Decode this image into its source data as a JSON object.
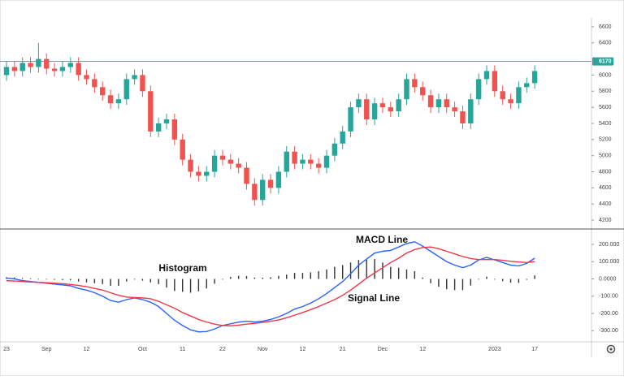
{
  "chart_data": [
    {
      "type": "candlestick",
      "up_color": "#26a69a",
      "down_color": "#ef5350",
      "open": [
        6000,
        6100,
        6050,
        6150,
        6100,
        6200,
        6080,
        6050,
        6100,
        6150,
        6000,
        5950,
        5850,
        5750,
        5650,
        5700,
        5950,
        6000,
        5800,
        5300,
        5400,
        5450,
        5200,
        4950,
        4800,
        4750,
        4800,
        5000,
        4950,
        4900,
        4850,
        4650,
        4450,
        4700,
        4600,
        4800,
        5050,
        4900,
        4950,
        4900,
        4850,
        5000,
        5150,
        5300,
        5600,
        5700,
        5450,
        5650,
        5600,
        5550,
        5700,
        5950,
        5850,
        5750,
        5600,
        5700,
        5600,
        5550,
        5400,
        5700,
        5950,
        6050,
        5800,
        5700,
        5650,
        5850,
        5900
      ],
      "high": [
        6170,
        6170,
        6220,
        6220,
        6400,
        6270,
        6150,
        6170,
        6220,
        6220,
        6070,
        6020,
        5920,
        5820,
        5770,
        6020,
        6070,
        6070,
        5870,
        5470,
        5520,
        5520,
        5270,
        5020,
        4870,
        4870,
        5070,
        5070,
        5020,
        4970,
        4920,
        4720,
        4770,
        4770,
        4870,
        5120,
        5120,
        5020,
        5020,
        4970,
        5070,
        5220,
        5370,
        5670,
        5770,
        5770,
        5720,
        5720,
        5670,
        5770,
        6020,
        6020,
        5920,
        5820,
        5770,
        5770,
        5670,
        5620,
        5770,
        6020,
        6120,
        6120,
        5870,
        5770,
        5920,
        5970,
        6120
      ],
      "low": [
        5930,
        5980,
        5980,
        6030,
        6030,
        6010,
        5980,
        5980,
        6030,
        5930,
        5880,
        5780,
        5680,
        5580,
        5580,
        5630,
        5880,
        5730,
        5230,
        5230,
        5330,
        5130,
        4880,
        4730,
        4680,
        4680,
        4730,
        4880,
        4830,
        4780,
        4580,
        4380,
        4380,
        4530,
        4530,
        4730,
        4830,
        4830,
        4830,
        4780,
        4780,
        4930,
        5080,
        5230,
        5530,
        5380,
        5380,
        5530,
        5480,
        5480,
        5630,
        5780,
        5680,
        5530,
        5530,
        5530,
        5480,
        5330,
        5330,
        5630,
        5880,
        5730,
        5630,
        5580,
        5580,
        5780,
        5830
      ],
      "close": [
        6100,
        6050,
        6150,
        6100,
        6200,
        6080,
        6050,
        6100,
        6150,
        6000,
        5950,
        5850,
        5750,
        5650,
        5700,
        5950,
        6000,
        5800,
        5300,
        5400,
        5450,
        5200,
        4950,
        4800,
        4750,
        4800,
        5000,
        4950,
        4900,
        4850,
        4650,
        4450,
        4700,
        4600,
        4800,
        5050,
        4900,
        4950,
        4900,
        4850,
        5000,
        5150,
        5300,
        5600,
        5700,
        5450,
        5650,
        5600,
        5550,
        5700,
        5950,
        5850,
        5750,
        5600,
        5700,
        5600,
        5550,
        5400,
        5700,
        5950,
        6050,
        5800,
        5700,
        5650,
        5850,
        5900,
        6050
      ],
      "price_line": 6170,
      "price_line_color": "#26a69a",
      "ylim": [
        4100,
        6710
      ],
      "yticks": [
        4200,
        4400,
        4600,
        4800,
        5000,
        5200,
        5400,
        5600,
        5800,
        6000,
        6400,
        6600
      ]
    },
    {
      "type": "macd",
      "categories": [
        "23",
        null,
        null,
        null,
        null,
        "Sep",
        null,
        null,
        null,
        null,
        "12",
        null,
        null,
        null,
        null,
        null,
        null,
        "Oct",
        null,
        null,
        null,
        null,
        "11",
        null,
        null,
        null,
        null,
        "22",
        null,
        null,
        null,
        null,
        "Nov",
        null,
        null,
        null,
        null,
        "12",
        null,
        null,
        null,
        null,
        "21",
        null,
        null,
        null,
        null,
        "Dec",
        null,
        null,
        null,
        null,
        "12",
        null,
        null,
        null,
        null,
        null,
        null,
        null,
        null,
        "2023",
        null,
        null,
        null,
        null,
        "17"
      ],
      "series": [
        {
          "name": "Histogram",
          "type": "bar",
          "color": "#333333",
          "values": [
            10,
            8,
            5,
            3,
            0,
            -3,
            -5,
            -7,
            -8,
            -15,
            -20,
            -25,
            -30,
            -40,
            -40,
            -15,
            -2,
            -10,
            -20,
            -30,
            -50,
            -70,
            -75,
            -80,
            -72,
            -55,
            -28,
            0,
            12,
            18,
            17,
            8,
            7,
            10,
            18,
            25,
            35,
            35,
            38,
            45,
            55,
            70,
            80,
            95,
            110,
            110,
            115,
            95,
            70,
            65,
            55,
            45,
            8,
            -25,
            -45,
            -60,
            -65,
            -65,
            -38,
            -2,
            13,
            -2,
            -13,
            -22,
            -23,
            -5,
            20
          ]
        },
        {
          "name": "MACD Line",
          "type": "line",
          "color": "#2962ff",
          "values": [
            5,
            0,
            -10,
            -15,
            -20,
            -25,
            -30,
            -35,
            -40,
            -55,
            -65,
            -80,
            -100,
            -125,
            -135,
            -120,
            -110,
            -120,
            -135,
            -160,
            -200,
            -240,
            -270,
            -295,
            -307,
            -305,
            -290,
            -270,
            -260,
            -250,
            -245,
            -250,
            -245,
            -235,
            -220,
            -200,
            -175,
            -160,
            -140,
            -115,
            -85,
            -50,
            -15,
            30,
            80,
            115,
            150,
            160,
            165,
            185,
            205,
            215,
            190,
            160,
            130,
            100,
            80,
            65,
            80,
            110,
            125,
            110,
            95,
            80,
            75,
            90,
            120
          ]
        },
        {
          "name": "Signal Line",
          "type": "line",
          "color": "#f23645",
          "values": [
            -10,
            -12,
            -15,
            -18,
            -20,
            -22,
            -25,
            -28,
            -32,
            -38,
            -45,
            -55,
            -65,
            -80,
            -95,
            -105,
            -108,
            -110,
            -115,
            -130,
            -150,
            -170,
            -195,
            -215,
            -235,
            -250,
            -262,
            -270,
            -272,
            -268,
            -262,
            -258,
            -252,
            -245,
            -238,
            -225,
            -210,
            -195,
            -178,
            -160,
            -140,
            -120,
            -95,
            -65,
            -30,
            5,
            35,
            65,
            95,
            120,
            150,
            170,
            182,
            185,
            175,
            160,
            145,
            130,
            118,
            112,
            112,
            112,
            108,
            102,
            98,
            95,
            100
          ]
        }
      ],
      "ylim": [
        -360,
        280
      ],
      "yticks": [
        {
          "value": -300,
          "label": "-300.00"
        },
        {
          "value": -200,
          "label": "-200.00"
        },
        {
          "value": -100,
          "label": "-100.00"
        },
        {
          "value": 0,
          "label": "0.0000"
        },
        {
          "value": 100,
          "label": "100.000"
        },
        {
          "value": 200,
          "label": "200.000"
        }
      ]
    }
  ]
}
